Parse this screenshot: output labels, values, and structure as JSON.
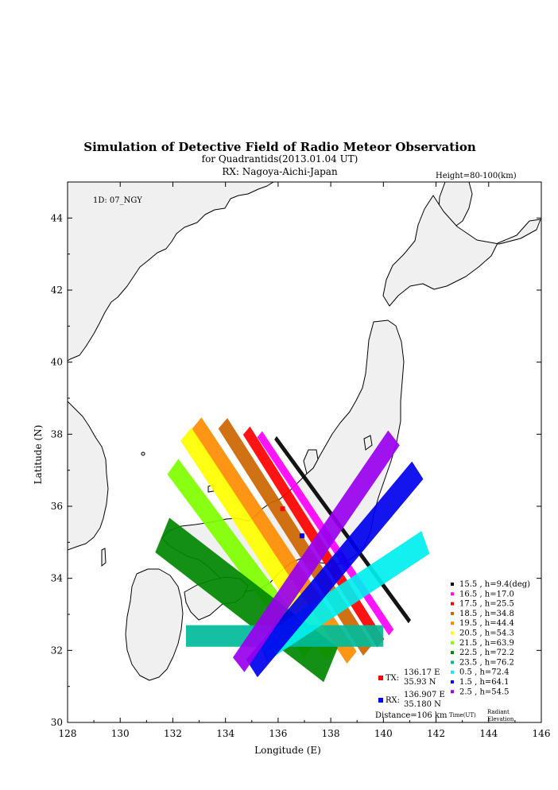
{
  "chart_data": {
    "type": "map",
    "title": "Simulation of Detective Field of Radio Meteor Observation",
    "subtitle": "for Quadrantids(2013.01.04 UT)",
    "receiver_line": "RX: Nagoya-Aichi-Japan",
    "height_note": "Height=80-100(km)",
    "station_id": "1D: 07_NGY",
    "xlabel": "Longitude (E)",
    "ylabel": "Latitude (N)",
    "xlim": [
      128,
      146
    ],
    "ylim": [
      30,
      45
    ],
    "x_ticks": [
      "128",
      "130",
      "132",
      "134",
      "136",
      "138",
      "140",
      "142",
      "144",
      "146"
    ],
    "y_ticks": [
      "30",
      "32",
      "34",
      "36",
      "38",
      "40",
      "42",
      "44"
    ],
    "tx": {
      "label": "TX:",
      "lon_text": "136.17 E",
      "lat_text": "35.93 N",
      "lon": 136.17,
      "lat": 35.93,
      "color": "#ff0000"
    },
    "rx": {
      "label": "RX:",
      "lon_text": "136.907 E",
      "lat_text": "35.180 N",
      "lon": 136.907,
      "lat": 35.18,
      "color": "#0000ff"
    },
    "distance": "Distance=106 km",
    "legend_footer": {
      "time": "Time(UT)",
      "radiant": "Radiant",
      "elevation": "Elevation"
    },
    "series": [
      {
        "label": "15.5 ,  h=9.4(deg)",
        "color": "#000000",
        "p1": [
          135.9,
          37.9
        ],
        "p2": [
          141.0,
          32.8
        ],
        "width": 0.13
      },
      {
        "label": "16.5 ,  h=17.0",
        "color": "#ff00ff",
        "p1": [
          135.3,
          38.0
        ],
        "p2": [
          140.3,
          32.5
        ],
        "width": 0.25
      },
      {
        "label": "17.5 ,  h=25.5",
        "color": "#ff0000",
        "p1": [
          134.8,
          38.1
        ],
        "p2": [
          139.9,
          32.2
        ],
        "width": 0.35
      },
      {
        "label": "18.5 ,  h=34.8",
        "color": "#cc6600",
        "p1": [
          133.9,
          38.3
        ],
        "p2": [
          139.4,
          32.0
        ],
        "width": 0.45
      },
      {
        "label": "19.5 ,  h=44.4",
        "color": "#ff8c00",
        "p1": [
          132.9,
          38.3
        ],
        "p2": [
          138.8,
          31.8
        ],
        "width": 0.5
      },
      {
        "label": "20.5 ,  h=54.3",
        "color": "#ffff00",
        "p1": [
          132.5,
          38.0
        ],
        "p2": [
          138.0,
          31.9
        ],
        "width": 0.55
      },
      {
        "label": "21.5 ,  h=63.9",
        "color": "#7fff00",
        "p1": [
          132.0,
          37.1
        ],
        "p2": [
          137.2,
          32.0
        ],
        "width": 0.6
      },
      {
        "label": "22.5 ,  h=72.2",
        "color": "#008800",
        "p1": [
          131.6,
          35.2
        ],
        "p2": [
          138.0,
          31.6
        ],
        "width": 1.1
      },
      {
        "label": "23.5 ,  h=76.2",
        "color": "#00bb99",
        "p1": [
          132.5,
          32.4
        ],
        "p2": [
          140.0,
          32.4
        ],
        "width": 0.6
      },
      {
        "label": "0.5 ,  h=72.4",
        "color": "#00eeee",
        "p1": [
          135.4,
          32.0
        ],
        "p2": [
          141.6,
          35.0
        ],
        "width": 0.7
      },
      {
        "label": "1.5 ,  h=64.1",
        "color": "#0000ee",
        "p1": [
          135.0,
          31.5
        ],
        "p2": [
          141.3,
          37.0
        ],
        "width": 0.65
      },
      {
        "label": "2.5 ,  h=54.5",
        "color": "#9900ee",
        "p1": [
          134.5,
          31.6
        ],
        "p2": [
          140.4,
          37.9
        ],
        "width": 0.6
      }
    ]
  }
}
